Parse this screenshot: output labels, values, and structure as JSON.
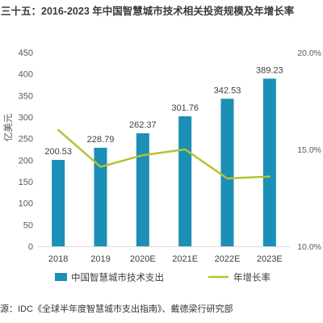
{
  "colors": {
    "bar": "#1b8fb6",
    "line": "#b6c234",
    "axis": "#d9d9d9",
    "tick_text": "#595959",
    "title_text": "#3b3b3b"
  },
  "source": "源：IDC《全球半年度智慧城市支出指南》、戴德梁行研究部",
  "chart_data": {
    "type": "bar",
    "title": "三十五：2016-2023 年中国智慧城市技术相关投资规模及年增长率",
    "categories": [
      "2018",
      "2019",
      "2020E",
      "2021E",
      "2022E",
      "2023E"
    ],
    "series": [
      {
        "name": "中国智慧城市技术支出",
        "type": "bar",
        "y_axis": "left",
        "data_labels": true,
        "values": [
          200.53,
          228.79,
          262.37,
          301.76,
          342.53,
          389.23
        ]
      },
      {
        "name": "年增长率",
        "type": "line",
        "y_axis": "right",
        "data_labels": false,
        "values": [
          16.0,
          14.1,
          14.7,
          15.0,
          13.5,
          13.6
        ]
      }
    ],
    "ylabel": "亿美元",
    "ylim": [
      0,
      450
    ],
    "yticks": [
      0,
      50,
      100,
      150,
      200,
      250,
      300,
      350,
      400,
      450
    ],
    "y2lim": [
      10,
      20
    ],
    "y2ticks": [
      10,
      15,
      20
    ],
    "y2tick_labels": [
      "10.0%",
      "15.0%",
      "20.0%"
    ],
    "grid": false,
    "legend": "bottom"
  }
}
